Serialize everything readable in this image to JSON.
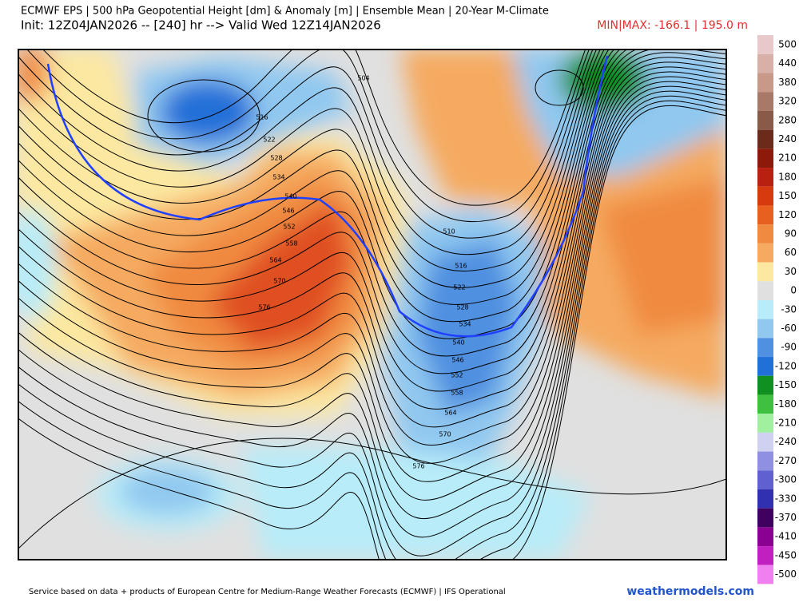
{
  "header": {
    "title": "ECMWF EPS | 500 hPa Geopotential Height [dm] & Anomaly [m] | Ensemble Mean | 20-Year M-Climate",
    "init": "Init: 12Z04JAN2026 -- [240] hr --> Valid Wed 12Z14JAN2026",
    "minmax": "MIN|MAX: -166.1 | 195.0 m"
  },
  "contour_labels": [
    "504",
    "516",
    "522",
    "528",
    "534",
    "540",
    "546",
    "552",
    "558",
    "564",
    "570",
    "576",
    "510",
    "516",
    "522",
    "528",
    "534",
    "540",
    "546",
    "552",
    "558",
    "564",
    "570",
    "576"
  ],
  "colorbar": [
    {
      "label": "500",
      "color": "#e8c8c8"
    },
    {
      "label": "440",
      "color": "#d8b0a8"
    },
    {
      "label": "380",
      "color": "#c89888"
    },
    {
      "label": "320",
      "color": "#a87868"
    },
    {
      "label": "280",
      "color": "#8a5a48"
    },
    {
      "label": "240",
      "color": "#6b2a1a"
    },
    {
      "label": "210",
      "color": "#8b1a0a"
    },
    {
      "label": "180",
      "color": "#b82010"
    },
    {
      "label": "150",
      "color": "#d83a10"
    },
    {
      "label": "120",
      "color": "#e86020"
    },
    {
      "label": "90",
      "color": "#f08a40"
    },
    {
      "label": "60",
      "color": "#f5aa60"
    },
    {
      "label": "30",
      "color": "#fce8a0"
    },
    {
      "label": "0",
      "color": "#e0e0e0"
    },
    {
      "label": "-30",
      "color": "#b8ecf8"
    },
    {
      "label": "-60",
      "color": "#90c8f0"
    },
    {
      "label": "-90",
      "color": "#5090e0"
    },
    {
      "label": "-120",
      "color": "#2070d8"
    },
    {
      "label": "-150",
      "color": "#109020"
    },
    {
      "label": "-180",
      "color": "#40c040"
    },
    {
      "label": "-210",
      "color": "#a0f0a0"
    },
    {
      "label": "-240",
      "color": "#d0d0f0"
    },
    {
      "label": "-270",
      "color": "#9090e0"
    },
    {
      "label": "-300",
      "color": "#6060d0"
    },
    {
      "label": "-330",
      "color": "#3030b0"
    },
    {
      "label": "-370",
      "color": "#400060"
    },
    {
      "label": "-410",
      "color": "#8a0090"
    },
    {
      "label": "-450",
      "color": "#c020c0"
    },
    {
      "label": "-500",
      "color": "#f080f0"
    }
  ],
  "footer": {
    "credit": "Service based on data + products of European Centre for Medium-Range Weather Forecasts (ECMWF) | IFS Operational",
    "site": "weathermodels.com"
  }
}
